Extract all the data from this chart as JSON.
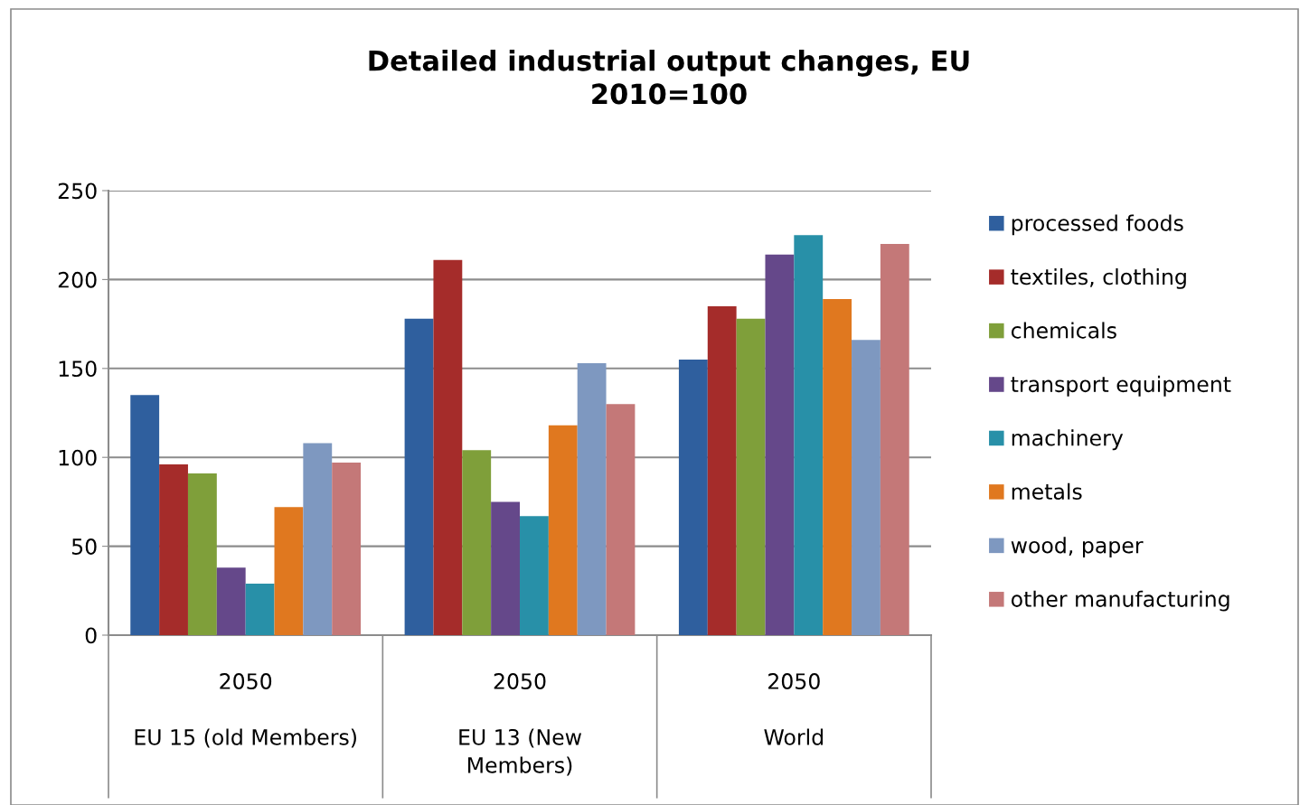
{
  "chart_data": {
    "type": "bar",
    "title": "Detailed industrial output changes, EU\n2010=100",
    "categories": [
      "2050\n\nEU 15 (old Members)",
      "2050\n\nEU 13 (New\nMembers)",
      "2050\n\nWorld"
    ],
    "series": [
      {
        "name": "processed foods",
        "color": "#2f5f9e",
        "values": [
          135,
          178,
          155
        ]
      },
      {
        "name": "textiles, clothing",
        "color": "#a52c2a",
        "values": [
          96,
          211,
          185
        ]
      },
      {
        "name": "chemicals",
        "color": "#7f9f3a",
        "values": [
          91,
          104,
          178
        ]
      },
      {
        "name": "transport equipment",
        "color": "#65488a",
        "values": [
          38,
          75,
          214
        ]
      },
      {
        "name": "machinery",
        "color": "#2890a8",
        "values": [
          29,
          67,
          225
        ]
      },
      {
        "name": "metals",
        "color": "#e0781f",
        "values": [
          72,
          118,
          189
        ]
      },
      {
        "name": "wood, paper",
        "color": "#7e98c0",
        "values": [
          108,
          153,
          166
        ]
      },
      {
        "name": "other manufacturing",
        "color": "#c47878",
        "values": [
          97,
          130,
          220
        ]
      }
    ],
    "ylim": [
      0,
      250
    ],
    "yticks": [
      0,
      50,
      100,
      150,
      200,
      250
    ],
    "grid": "y",
    "legend": "right"
  }
}
